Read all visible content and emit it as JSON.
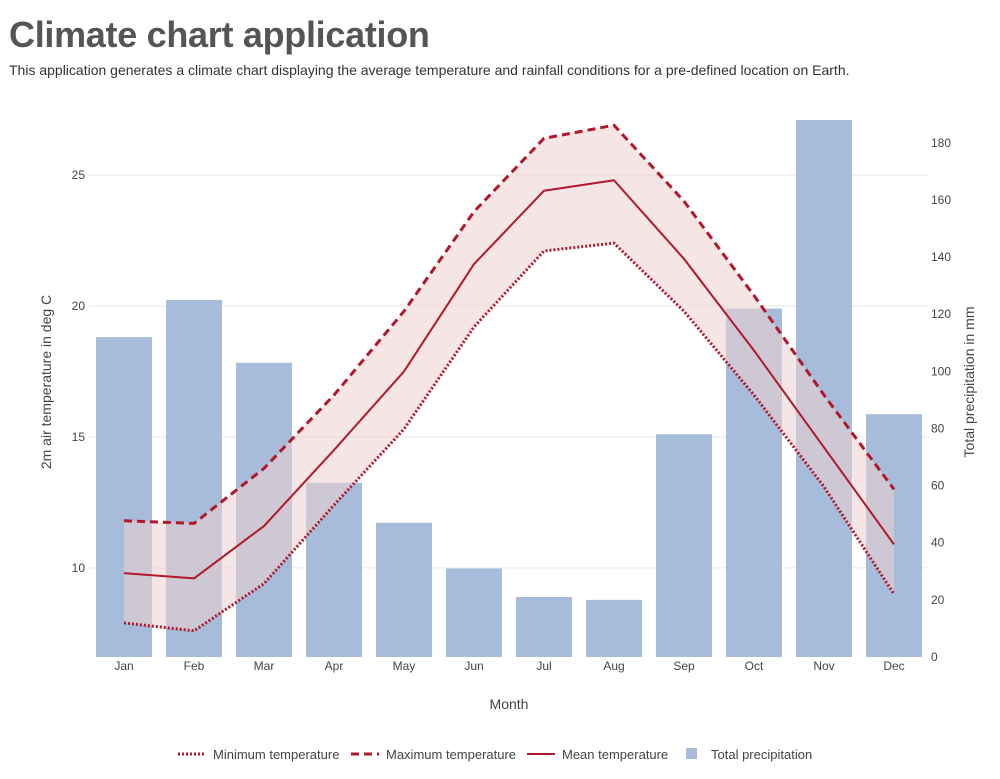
{
  "header": {
    "title": "Climate chart application",
    "description": "This application generates a climate chart displaying the average temperature and rainfall conditions for a pre-defined location on Earth."
  },
  "colors": {
    "bar": "#a7bcda",
    "line": "#b2182b",
    "band": "#efcfcf",
    "grid": "#e6e6e6"
  },
  "chart_data": {
    "type": "bar",
    "categories": [
      "Jan",
      "Feb",
      "Mar",
      "Apr",
      "May",
      "Jun",
      "Jul",
      "Aug",
      "Sep",
      "Oct",
      "Nov",
      "Dec"
    ],
    "series": [
      {
        "name": "Minimum temperature",
        "type": "line",
        "style": "dotted",
        "axis": "left",
        "values": [
          7.9,
          7.6,
          9.4,
          12.4,
          15.3,
          19.2,
          22.1,
          22.4,
          19.8,
          16.6,
          13.1,
          9.0
        ]
      },
      {
        "name": "Maximum temperature",
        "type": "line",
        "style": "dashed",
        "axis": "left",
        "values": [
          11.8,
          11.7,
          13.8,
          16.6,
          19.8,
          23.6,
          26.4,
          26.9,
          24.0,
          20.4,
          16.6,
          13.0
        ]
      },
      {
        "name": "Mean temperature",
        "type": "line",
        "style": "solid",
        "axis": "left",
        "values": [
          9.8,
          9.6,
          11.6,
          14.5,
          17.5,
          21.6,
          24.4,
          24.8,
          21.8,
          18.3,
          14.6,
          10.9
        ]
      },
      {
        "name": "Total precipitation",
        "type": "bar",
        "axis": "right",
        "values": [
          112,
          125,
          103,
          61,
          47,
          31,
          21,
          20,
          78,
          122,
          188,
          85
        ]
      }
    ],
    "xlabel": "Month",
    "ylabel": "2m air temperature in deg C",
    "y2label": "Total precipitation in mm",
    "ylim": [
      6.6,
      27.1
    ],
    "y2lim": [
      0,
      188
    ],
    "yticks": [
      10,
      15,
      20,
      25
    ],
    "y2ticks": [
      0,
      20,
      40,
      60,
      80,
      100,
      120,
      140,
      160,
      180
    ],
    "legend_position": "bottom",
    "grid": true
  }
}
